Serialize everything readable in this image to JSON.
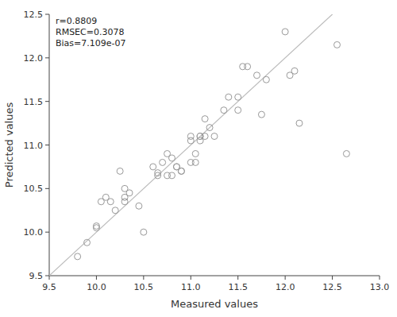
{
  "chart_data": {
    "type": "scatter",
    "x": [
      9.8,
      9.9,
      10.0,
      10.05,
      10.1,
      10.15,
      10.2,
      10.25,
      10.3,
      10.3,
      10.35,
      10.45,
      10.5,
      10.6,
      10.65,
      10.7,
      10.75,
      10.8,
      10.85,
      10.9,
      10.9,
      11.0,
      11.0,
      11.05,
      11.1,
      11.1,
      11.15,
      11.2,
      11.25,
      11.35,
      11.4,
      11.5,
      11.55,
      11.7,
      11.75,
      11.8,
      12.0,
      12.05,
      12.1,
      12.15,
      12.55,
      12.65,
      10.0,
      10.3,
      10.65,
      10.75,
      10.8,
      10.85,
      11.0,
      11.05,
      11.1,
      11.15,
      11.5,
      11.6
    ],
    "values": [
      9.72,
      9.88,
      10.05,
      10.35,
      10.4,
      10.35,
      10.25,
      10.7,
      10.35,
      10.5,
      10.45,
      10.3,
      10.0,
      10.75,
      10.65,
      10.8,
      10.65,
      10.85,
      10.75,
      10.7,
      10.7,
      11.1,
      10.8,
      10.9,
      11.1,
      11.1,
      11.3,
      11.2,
      11.1,
      11.4,
      11.55,
      11.4,
      11.9,
      11.8,
      11.35,
      11.75,
      12.3,
      11.8,
      11.85,
      11.25,
      12.15,
      10.9,
      10.07,
      10.4,
      10.68,
      10.9,
      10.65,
      10.75,
      11.05,
      10.8,
      11.05,
      11.1,
      11.55,
      11.9
    ],
    "color": "#999999",
    "marker": "open-circle",
    "reference_line": {
      "x": [
        9.5,
        13.0
      ],
      "y": [
        9.5,
        13.0
      ],
      "color": "#bbbbbb"
    },
    "annotation": "r=0.8809\nRMSEC=0.3078\nBias=7.109e-07",
    "xlabel": "Measured values",
    "ylabel": "Predicted values",
    "xlim": [
      9.5,
      13.0
    ],
    "ylim": [
      9.5,
      12.5
    ],
    "xticks": [
      9.5,
      {
        "value": 10.0,
        "label": "10.0"
      },
      10.5,
      {
        "value": 11.0,
        "label": "11.0"
      },
      11.5,
      {
        "value": 12.0,
        "label": "12.0"
      },
      12.5,
      {
        "value": 13.0,
        "label": "13.0"
      }
    ],
    "yticks": [
      9.5,
      {
        "value": 10.0,
        "label": "10.0"
      },
      10.5,
      {
        "value": 11.0,
        "label": "11.0"
      },
      11.5,
      {
        "value": 12.0,
        "label": "12.0"
      },
      12.5
    ],
    "grid": false
  }
}
